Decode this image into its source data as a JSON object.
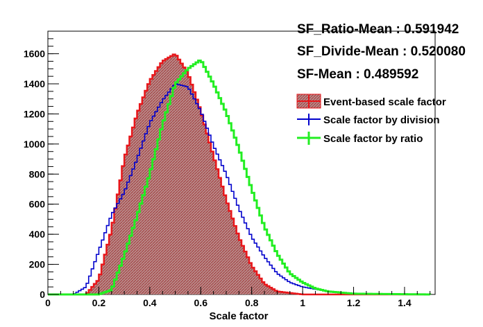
{
  "stats": {
    "ratio_mean": "SF_Ratio-Mean : 0.591942",
    "divide_mean": "SF_Divide-Mean : 0.520080",
    "sf_mean": "SF-Mean : 0.489592"
  },
  "legend": [
    {
      "label": "Event-based scale factor",
      "color": "#e8161a",
      "style": "fill-hatched"
    },
    {
      "label": "Scale factor by division",
      "color": "#0000cc",
      "style": "line"
    },
    {
      "label": "Scale factor by ratio",
      "color": "#22ee22",
      "style": "line"
    }
  ],
  "chart_data": {
    "type": "area",
    "title": "",
    "xlabel": "Scale factor",
    "ylabel": "",
    "xlim": [
      0,
      1.52
    ],
    "ylim": [
      0,
      1750
    ],
    "grid": false,
    "legend_position": "top-right",
    "x_ticks": [
      "0",
      "0.2",
      "0.4",
      "0.6",
      "0.8",
      "1",
      "1.2",
      "1.4"
    ],
    "y_ticks": [
      "0",
      "200",
      "400",
      "600",
      "800",
      "1000",
      "1200",
      "1400",
      "1600"
    ],
    "series": [
      {
        "name": "Event-based scale factor",
        "color": "#e8161a",
        "fill": "#b87878",
        "x": [
          0.0,
          0.15,
          0.2,
          0.25,
          0.3,
          0.35,
          0.4,
          0.45,
          0.5,
          0.55,
          0.6,
          0.65,
          0.7,
          0.75,
          0.8,
          0.85,
          0.9,
          1.0,
          1.5
        ],
        "y": [
          0,
          0,
          100,
          430,
          900,
          1200,
          1420,
          1550,
          1600,
          1470,
          1220,
          920,
          630,
          380,
          190,
          70,
          20,
          0,
          0
        ]
      },
      {
        "name": "Scale factor by division",
        "color": "#0000cc",
        "x": [
          0.0,
          0.1,
          0.15,
          0.2,
          0.25,
          0.3,
          0.35,
          0.4,
          0.45,
          0.5,
          0.55,
          0.6,
          0.65,
          0.7,
          0.75,
          0.8,
          0.85,
          0.9,
          0.95,
          1.0,
          1.1,
          1.2,
          1.5
        ],
        "y": [
          0,
          0,
          50,
          290,
          530,
          680,
          900,
          1140,
          1290,
          1400,
          1380,
          1220,
          990,
          800,
          570,
          380,
          250,
          140,
          80,
          50,
          20,
          5,
          0
        ]
      },
      {
        "name": "Scale factor by ratio",
        "color": "#22ee22",
        "x": [
          0.0,
          0.2,
          0.25,
          0.3,
          0.35,
          0.4,
          0.45,
          0.5,
          0.55,
          0.6,
          0.65,
          0.7,
          0.75,
          0.8,
          0.85,
          0.9,
          0.95,
          1.0,
          1.05,
          1.1,
          1.2,
          1.5
        ],
        "y": [
          0,
          0,
          30,
          260,
          520,
          800,
          1130,
          1400,
          1500,
          1560,
          1400,
          1210,
          970,
          700,
          450,
          270,
          140,
          80,
          40,
          20,
          5,
          0
        ]
      }
    ]
  }
}
